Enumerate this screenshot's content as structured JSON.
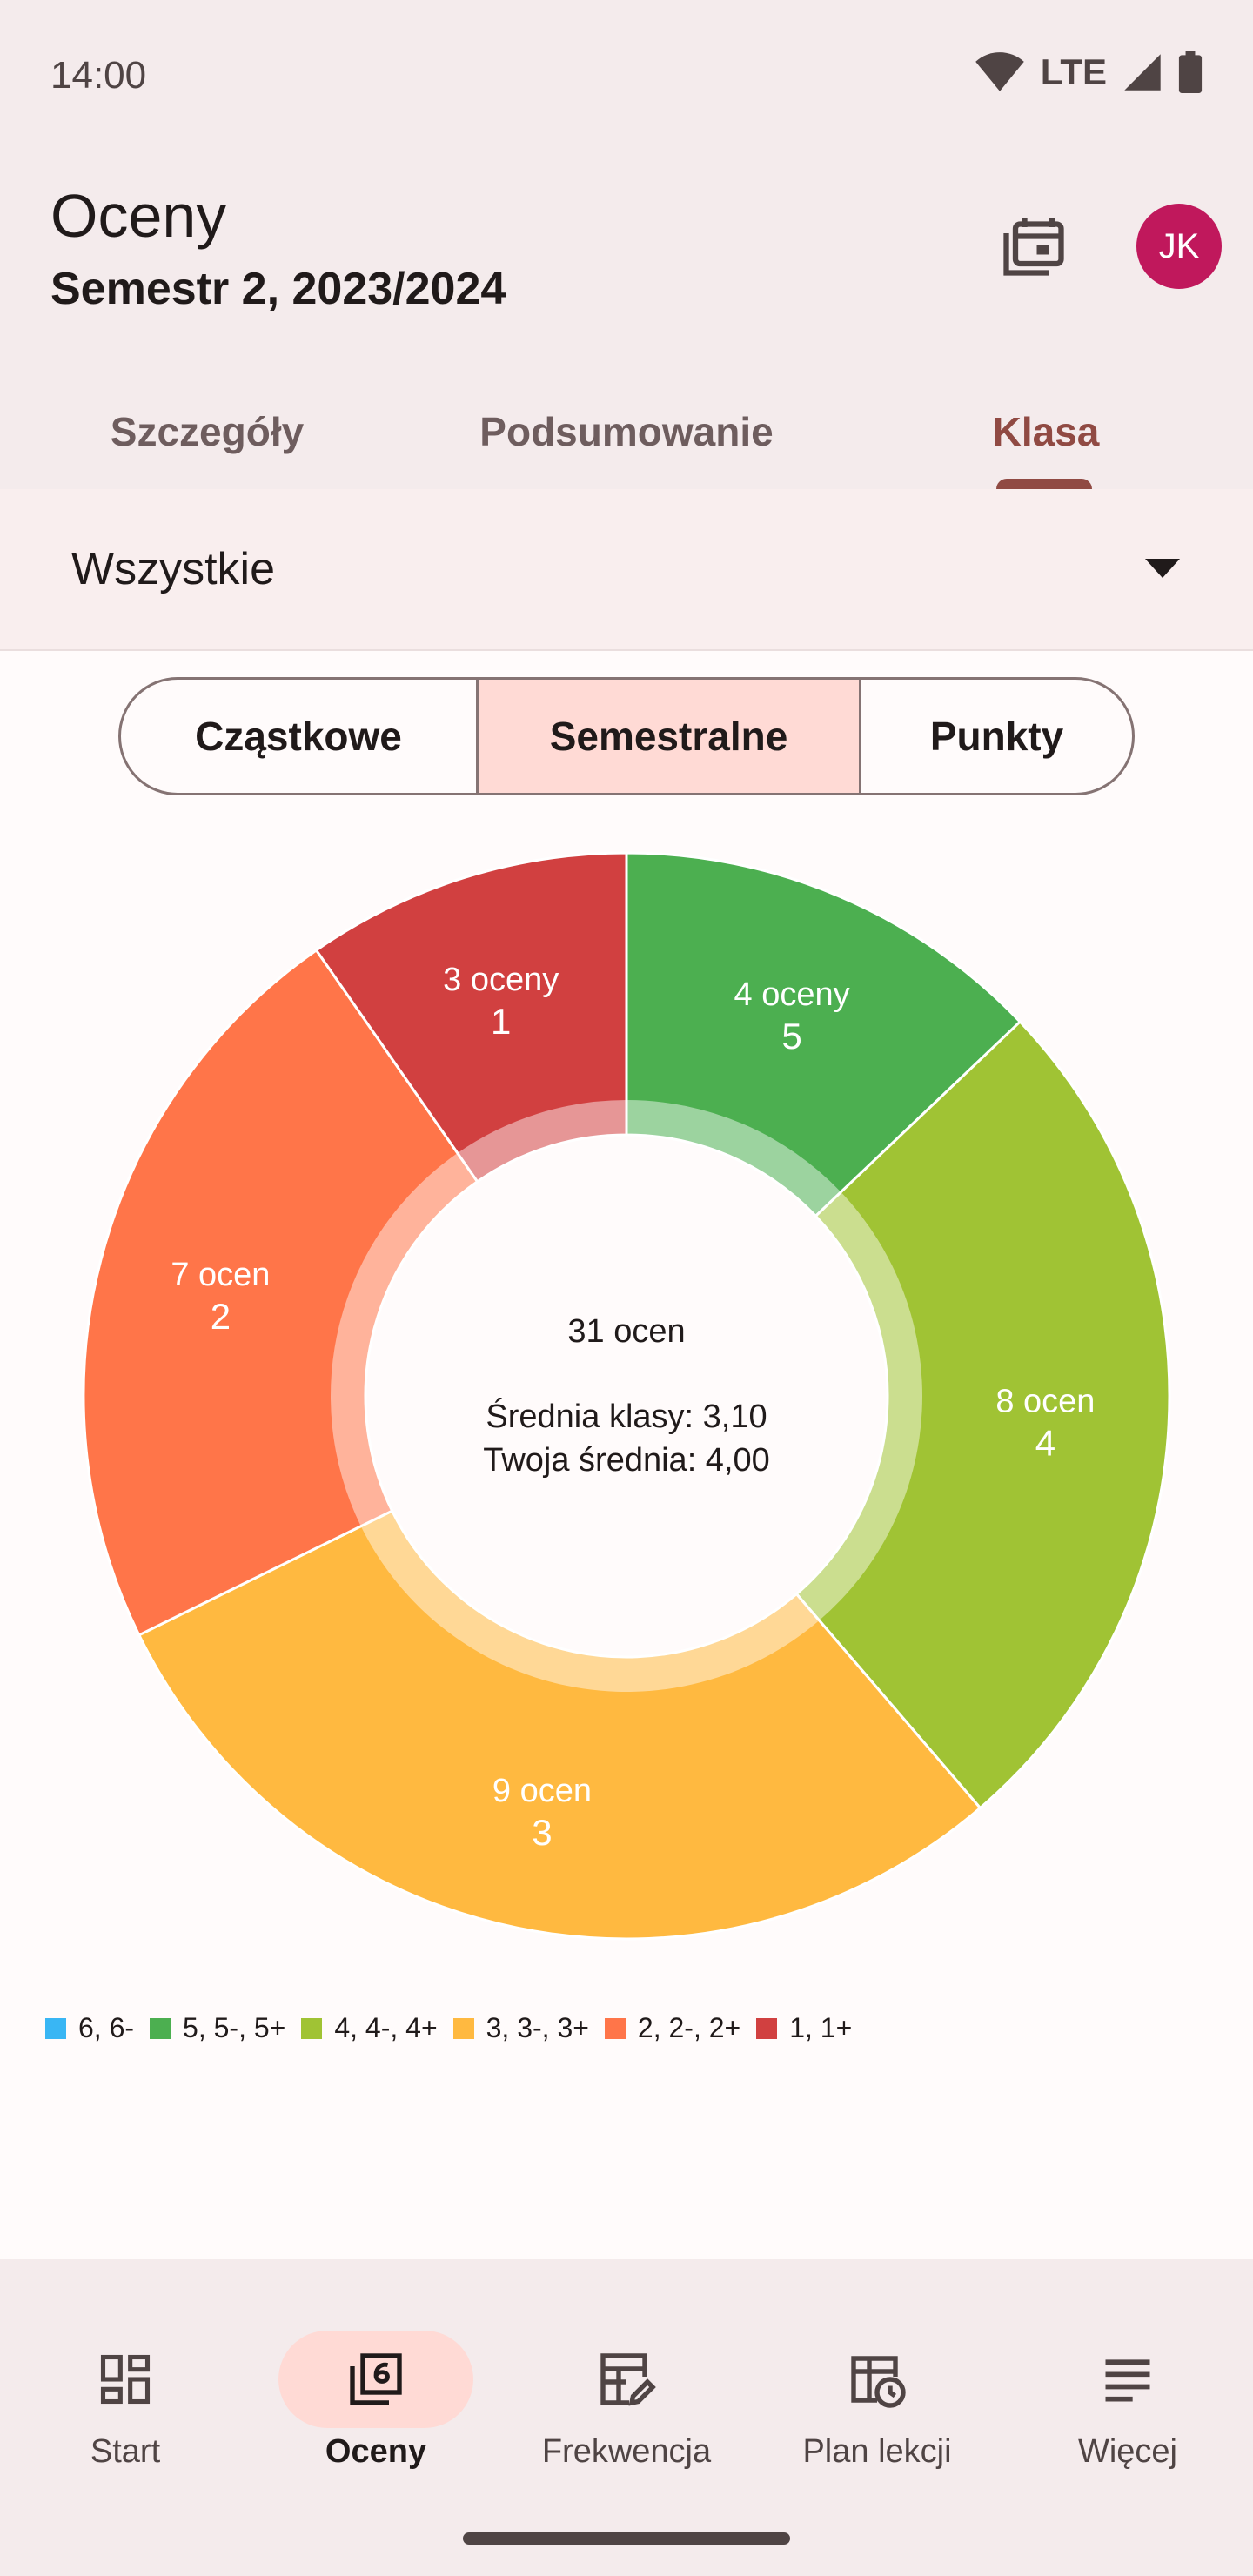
{
  "status": {
    "time": "14:00",
    "network": "LTE"
  },
  "header": {
    "title": "Oceny",
    "subtitle": "Semestr 2, 2023/2024",
    "avatar_initials": "JK"
  },
  "tabs": [
    {
      "label": "Szczegóły"
    },
    {
      "label": "Podsumowanie"
    },
    {
      "label": "Klasa",
      "active": true
    }
  ],
  "filter": {
    "value": "Wszystkie"
  },
  "segments": [
    {
      "label": "Cząstkowe"
    },
    {
      "label": "Semestralne",
      "selected": true
    },
    {
      "label": "Punkty"
    }
  ],
  "chart_data": {
    "type": "pie",
    "variant": "donut",
    "center": {
      "total": "31 ocen",
      "class_avg": "Średnia klasy: 3,10",
      "your_avg": "Twoja średnia: 4,00"
    },
    "slices": [
      {
        "grade": "5",
        "count_label": "4 oceny",
        "value": 4,
        "color": "#4caf50"
      },
      {
        "grade": "4",
        "count_label": "8 ocen",
        "value": 8,
        "color": "#a0c334"
      },
      {
        "grade": "3",
        "count_label": "9 ocen",
        "value": 9,
        "color": "#ffb940"
      },
      {
        "grade": "2",
        "count_label": "7 ocen",
        "value": 7,
        "color": "#ff7549"
      },
      {
        "grade": "1",
        "count_label": "3 oceny",
        "value": 3,
        "color": "#d14040"
      }
    ],
    "legend": [
      {
        "label": "6, 6-",
        "color": "#39b6f4"
      },
      {
        "label": "5, 5-, 5+",
        "color": "#4caf50"
      },
      {
        "label": "4, 4-, 4+",
        "color": "#a0c334"
      },
      {
        "label": "3, 3-, 3+",
        "color": "#ffb940"
      },
      {
        "label": "2, 2-, 2+",
        "color": "#ff7549"
      },
      {
        "label": "1, 1+",
        "color": "#d14040"
      }
    ]
  },
  "nav": [
    {
      "label": "Start",
      "icon": "dashboard-icon"
    },
    {
      "label": "Oceny",
      "icon": "grades-icon",
      "active": true
    },
    {
      "label": "Frekwencja",
      "icon": "attendance-icon"
    },
    {
      "label": "Plan lekcji",
      "icon": "timetable-icon"
    },
    {
      "label": "Więcej",
      "icon": "more-icon"
    }
  ]
}
